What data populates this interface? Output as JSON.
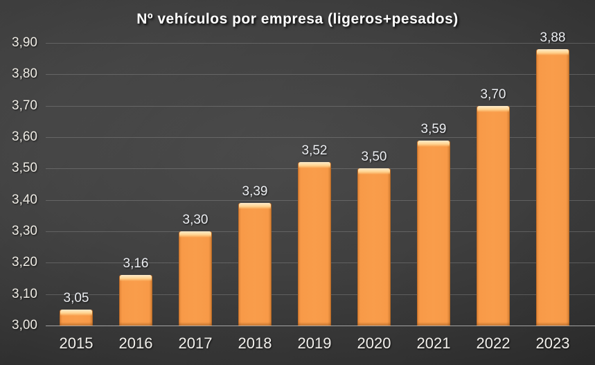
{
  "chart_data": {
    "type": "bar",
    "title": "Nº vehículos por empresa (ligeros+pesados)",
    "categories": [
      "2015",
      "2016",
      "2017",
      "2018",
      "2019",
      "2020",
      "2021",
      "2022",
      "2023"
    ],
    "values": [
      3.05,
      3.16,
      3.3,
      3.39,
      3.52,
      3.5,
      3.59,
      3.7,
      3.88
    ],
    "data_labels": [
      "3,05",
      "3,16",
      "3,30",
      "3,39",
      "3,52",
      "3,50",
      "3,59",
      "3,70",
      "3,88"
    ],
    "y_ticks": [
      "3,00",
      "3,10",
      "3,20",
      "3,30",
      "3,40",
      "3,50",
      "3,60",
      "3,70",
      "3,80",
      "3,90"
    ],
    "ylim": [
      3.0,
      3.9
    ],
    "xlabel": "",
    "ylabel": "",
    "grid": true,
    "legend_position": "none",
    "decimal_separator": ",",
    "colors": {
      "bar_fill": "#F79646",
      "bar_bevel_highlight": "#FFE4B3",
      "bar_edge_shadow": "#C87C33",
      "background_center": "#4B4B4B",
      "background_edge": "#242424",
      "gridline": "#6E6E6E",
      "axis_line": "#AFAFAF",
      "title_text": "#FFFFFF",
      "tick_text": "#EFECE5",
      "data_label_text": "#ECEEF2"
    }
  }
}
